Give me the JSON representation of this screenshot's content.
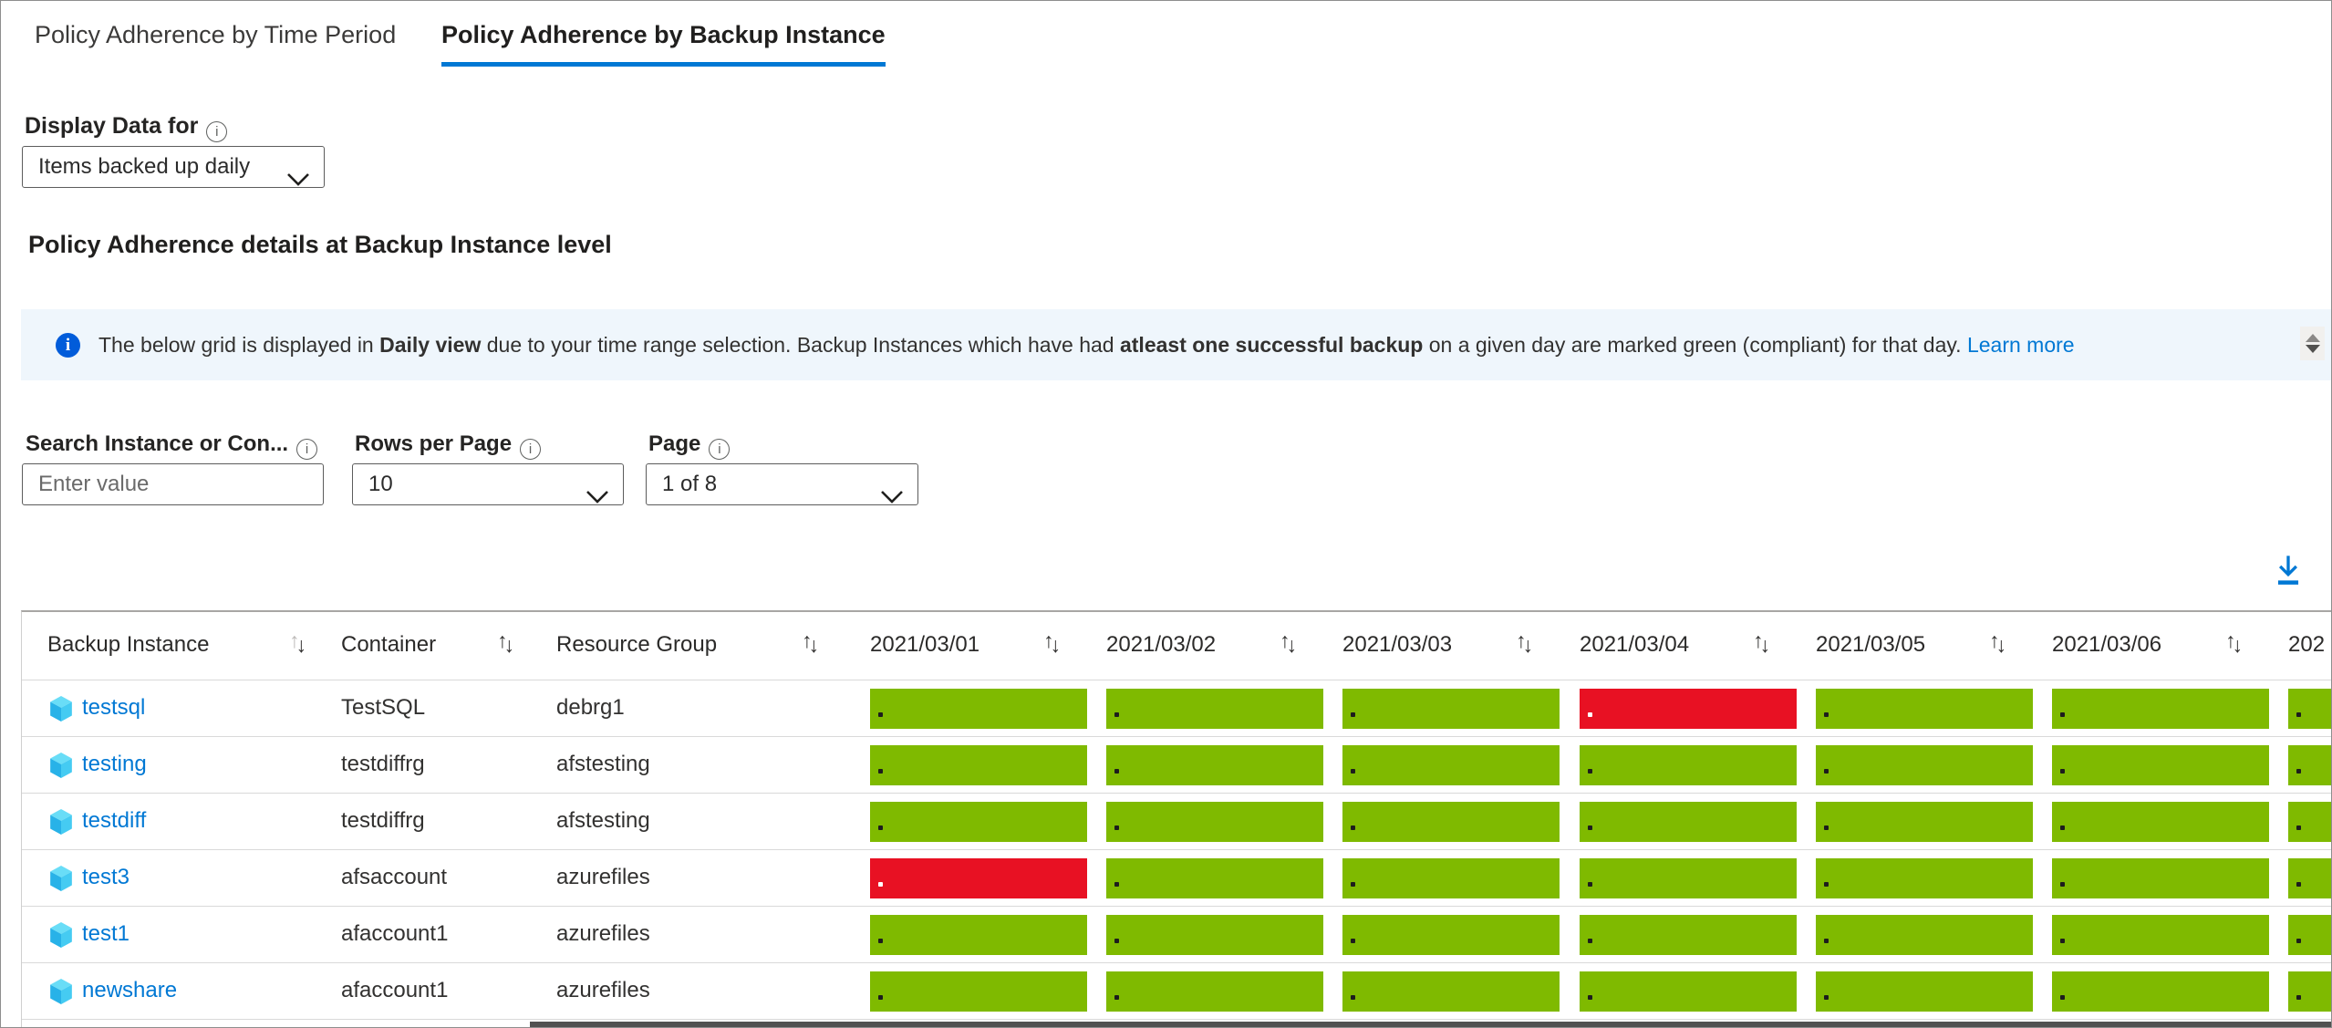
{
  "tabs": [
    {
      "label": "Policy Adherence by Time Period",
      "active": false
    },
    {
      "label": "Policy Adherence by Backup Instance",
      "active": true
    }
  ],
  "display_data": {
    "label": "Display Data for",
    "value": "Items backed up daily"
  },
  "section_title": "Policy Adherence details at Backup Instance level",
  "banner": {
    "segments": [
      {
        "text": "The below grid is displayed in "
      },
      {
        "text": "Daily view",
        "bold": true
      },
      {
        "text": " due to your time range selection. Backup Instances which have had "
      },
      {
        "text": "atleast one successful backup",
        "bold": true
      },
      {
        "text": " on a given day are marked green (compliant) for that day. "
      },
      {
        "text": "Learn more",
        "link": true
      }
    ]
  },
  "filters": {
    "search": {
      "label": "Search Instance or Con...",
      "placeholder": "Enter value"
    },
    "rows_per_page": {
      "label": "Rows per Page",
      "value": "10"
    },
    "page": {
      "label": "Page",
      "value": "1 of 8"
    }
  },
  "grid": {
    "columns": [
      {
        "label": "Backup Instance"
      },
      {
        "label": "Container"
      },
      {
        "label": "Resource Group"
      }
    ],
    "date_columns": [
      "2021/03/01",
      "2021/03/02",
      "2021/03/03",
      "2021/03/04",
      "2021/03/05",
      "2021/03/06",
      "202"
    ],
    "rows": [
      {
        "instance": "testsql",
        "container": "TestSQL",
        "resource_group": "debrg1",
        "statuses": [
          "compliant",
          "compliant",
          "compliant",
          "non_compliant",
          "compliant",
          "compliant",
          "compliant"
        ]
      },
      {
        "instance": "testing",
        "container": "testdiffrg",
        "resource_group": "afstesting",
        "statuses": [
          "compliant",
          "compliant",
          "compliant",
          "compliant",
          "compliant",
          "compliant",
          "compliant"
        ]
      },
      {
        "instance": "testdiff",
        "container": "testdiffrg",
        "resource_group": "afstesting",
        "statuses": [
          "compliant",
          "compliant",
          "compliant",
          "compliant",
          "compliant",
          "compliant",
          "compliant"
        ]
      },
      {
        "instance": "test3",
        "container": "afsaccount",
        "resource_group": "azurefiles",
        "statuses": [
          "non_compliant",
          "compliant",
          "compliant",
          "compliant",
          "compliant",
          "compliant",
          "compliant"
        ]
      },
      {
        "instance": "test1",
        "container": "afaccount1",
        "resource_group": "azurefiles",
        "statuses": [
          "compliant",
          "compliant",
          "compliant",
          "compliant",
          "compliant",
          "compliant",
          "compliant"
        ]
      },
      {
        "instance": "newshare",
        "container": "afaccount1",
        "resource_group": "azurefiles",
        "statuses": [
          "compliant",
          "compliant",
          "compliant",
          "compliant",
          "compliant",
          "compliant",
          "compliant"
        ]
      }
    ]
  },
  "colors": {
    "compliant_green": "#7FBA00",
    "non_compliant_red": "#E81123",
    "accent_blue": "#0078D4",
    "banner_background": "#EFF6FC",
    "info_icon_blue": "#015CDA"
  }
}
